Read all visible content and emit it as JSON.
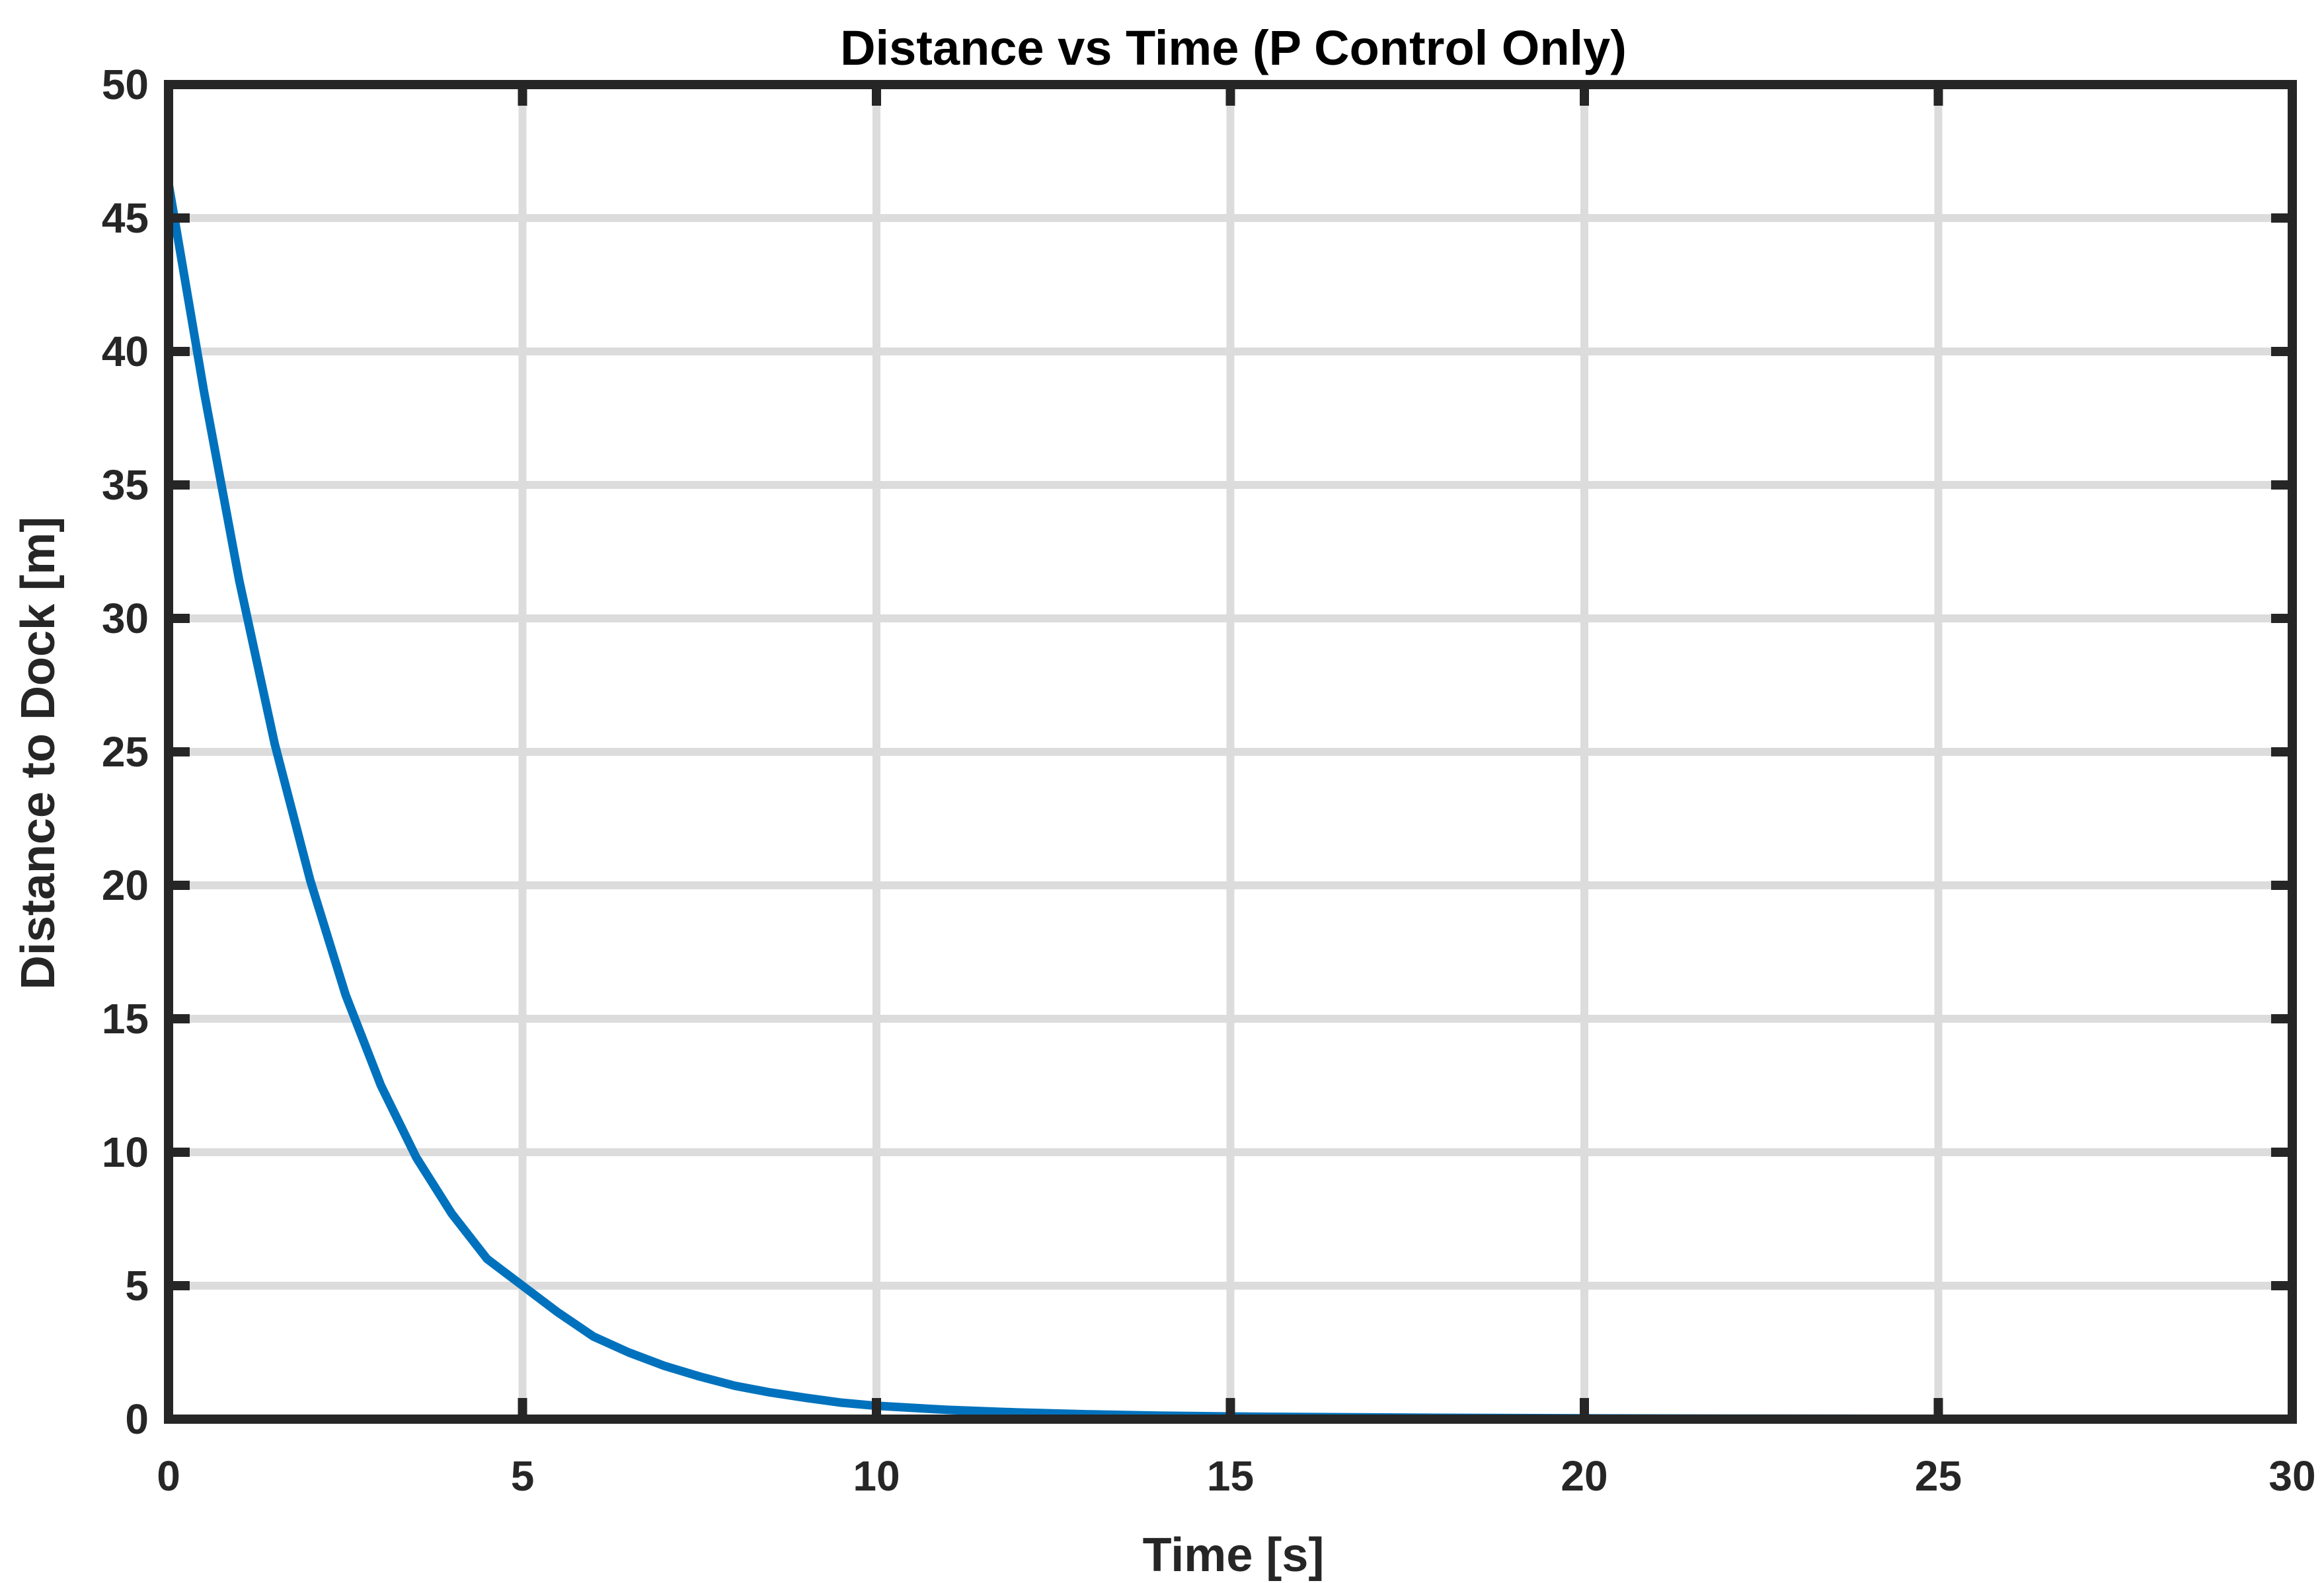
{
  "chart_data": {
    "type": "line",
    "title": "Distance vs Time (P Control Only)",
    "xlabel": "Time [s]",
    "ylabel": "Distance to Dock [m]",
    "xlim": [
      0,
      30
    ],
    "ylim": [
      0,
      50
    ],
    "xticks": [
      0,
      5,
      10,
      15,
      20,
      25,
      30
    ],
    "xtick_labels": [
      "0",
      "5",
      "10",
      "15",
      "20",
      "25",
      "30"
    ],
    "yticks": [
      0,
      5,
      10,
      15,
      20,
      25,
      30,
      35,
      40,
      45,
      50
    ],
    "ytick_labels": [
      "0",
      "5",
      "10",
      "15",
      "20",
      "25",
      "30",
      "35",
      "40",
      "45",
      "50"
    ],
    "grid": true,
    "legend": "none",
    "series": [
      {
        "color": "#0072BD",
        "x": [
          0,
          0.5,
          1,
          1.5,
          2,
          2.5,
          3,
          3.5,
          4,
          4.5,
          5,
          5.5,
          6,
          6.5,
          7,
          7.5,
          8,
          8.5,
          9,
          9.5,
          10,
          11,
          12,
          13,
          14,
          15,
          16,
          18,
          20,
          22,
          25,
          28,
          30
        ],
        "y": [
          46.3,
          38.5,
          31.4,
          25.3,
          20.2,
          15.9,
          12.5,
          9.8,
          7.7,
          6.0,
          5.0,
          4.0,
          3.1,
          2.5,
          2.0,
          1.6,
          1.25,
          1.0,
          0.8,
          0.62,
          0.5,
          0.35,
          0.25,
          0.18,
          0.13,
          0.1,
          0.08,
          0.05,
          0.03,
          0.02,
          0.01,
          0.005,
          0.0
        ]
      }
    ]
  },
  "colors": {
    "axes": "#262626",
    "grid": "#dcdcdc",
    "line": "#0072BD",
    "background": "#ffffff"
  }
}
